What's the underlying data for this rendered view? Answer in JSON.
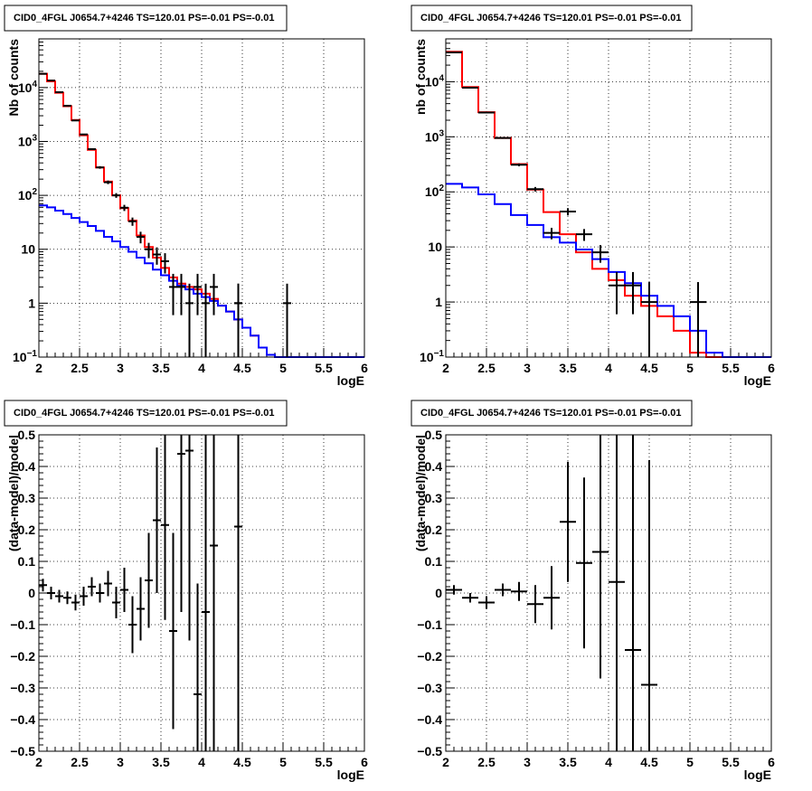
{
  "chart_data": [
    {
      "panel": "top-left",
      "type": "histogram",
      "title": "CID0_4FGL J0654.7+4246 TS=120.01 PS=-0.01 PS=-0.01",
      "xlabel": "logE",
      "ylabel": "Nb of counts",
      "xlim": [
        2,
        6
      ],
      "ylim": [
        0.1,
        80000
      ],
      "yscale": "log",
      "grid": true,
      "x_ticks": [
        "2",
        "2.5",
        "3",
        "3.5",
        "4",
        "4.5",
        "5",
        "5.5",
        "6"
      ],
      "y_ticks": [
        {
          "value": 0.1,
          "label": "10",
          "sup": "−1"
        },
        {
          "value": 1,
          "label": "1",
          "sup": ""
        },
        {
          "value": 10,
          "label": "10",
          "sup": ""
        },
        {
          "value": 100,
          "label": "10",
          "sup": "2"
        },
        {
          "value": 1000,
          "label": "10",
          "sup": "3"
        },
        {
          "value": 10000,
          "label": "10",
          "sup": "4"
        }
      ],
      "bin_edges_start": 2.0,
      "bin_width": 0.1,
      "series": [
        {
          "color": "#ff0000",
          "values": [
            18000,
            13000,
            8000,
            4500,
            2500,
            1300,
            700,
            330,
            180,
            100,
            58,
            34,
            18,
            11,
            7,
            4.5,
            3,
            2.3,
            2,
            1.8,
            1.5,
            1.2,
            0.9,
            0.7,
            0.5,
            0.35,
            0.25,
            0.15,
            0.11,
            0.1,
            0.1,
            0.1,
            0.1,
            0.1,
            0.1,
            0.1,
            0.1,
            0.1,
            0.1,
            0.1
          ]
        },
        {
          "color": "#0000ff",
          "values": [
            65,
            60,
            52,
            45,
            38,
            32,
            27,
            22,
            17,
            14,
            11,
            9,
            7,
            5.5,
            4.2,
            3.3,
            2.6,
            2.1,
            1.8,
            1.5,
            1.3,
            1.1,
            0.9,
            0.7,
            0.5,
            0.35,
            0.25,
            0.15,
            0.11,
            0.1,
            0.1,
            0.1,
            0.1,
            0.1,
            0.1,
            0.1,
            0.1,
            0.1,
            0.1,
            0.1
          ]
        }
      ],
      "points": [
        {
          "x": 2.05,
          "y": 18000
        },
        {
          "x": 2.15,
          "y": 13500
        },
        {
          "x": 2.25,
          "y": 8200
        },
        {
          "x": 2.35,
          "y": 4600
        },
        {
          "x": 2.45,
          "y": 2450
        },
        {
          "x": 2.55,
          "y": 1350
        },
        {
          "x": 2.65,
          "y": 720
        },
        {
          "x": 2.75,
          "y": 330
        },
        {
          "x": 2.85,
          "y": 175
        },
        {
          "x": 2.95,
          "y": 100
        },
        {
          "x": 3.05,
          "y": 59
        },
        {
          "x": 3.15,
          "y": 33
        },
        {
          "x": 3.25,
          "y": 17
        },
        {
          "x": 3.35,
          "y": 10
        },
        {
          "x": 3.45,
          "y": 8
        },
        {
          "x": 3.55,
          "y": 6
        },
        {
          "x": 3.65,
          "y": 2,
          "lo": 0.6,
          "hi": 3.5
        },
        {
          "x": 3.75,
          "y": 2,
          "lo": 0.6,
          "hi": 3.5
        },
        {
          "x": 3.85,
          "y": 1,
          "lo": 0.1,
          "hi": 2.3
        },
        {
          "x": 3.95,
          "y": 2,
          "lo": 0.6,
          "hi": 3.5
        },
        {
          "x": 4.05,
          "y": 1,
          "lo": 0.1,
          "hi": 2.3
        },
        {
          "x": 4.15,
          "y": 2,
          "lo": 0.6,
          "hi": 3.5
        },
        {
          "x": 4.45,
          "y": 1,
          "lo": 0.1,
          "hi": 2.3
        },
        {
          "x": 4.45,
          "y": 1,
          "lo": 0.1,
          "hi": 2.3
        },
        {
          "x": 5.05,
          "y": 1,
          "lo": 0.1,
          "hi": 2.3
        }
      ]
    },
    {
      "panel": "top-right",
      "type": "histogram",
      "title": "CID0_4FGL J0654.7+4246 TS=120.01 PS=-0.01 PS=-0.01",
      "xlabel": "logE",
      "ylabel": "nb of counts",
      "xlim": [
        2,
        6
      ],
      "ylim": [
        0.1,
        60000
      ],
      "yscale": "log",
      "grid": true,
      "x_ticks": [
        "2",
        "2.5",
        "3",
        "3.5",
        "4",
        "4.5",
        "5",
        "5.5",
        "6"
      ],
      "y_ticks": [
        {
          "value": 0.1,
          "label": "10",
          "sup": "−1"
        },
        {
          "value": 1,
          "label": "1",
          "sup": ""
        },
        {
          "value": 10,
          "label": "10",
          "sup": ""
        },
        {
          "value": 100,
          "label": "10",
          "sup": "2"
        },
        {
          "value": 1000,
          "label": "10",
          "sup": "3"
        },
        {
          "value": 10000,
          "label": "10",
          "sup": "4"
        }
      ],
      "bin_edges_start": 2.0,
      "bin_width": 0.2,
      "series": [
        {
          "color": "#ff0000",
          "values": [
            35000,
            8000,
            2800,
            950,
            320,
            110,
            43,
            17,
            8,
            4,
            2.5,
            1.3,
            0.85,
            0.55,
            0.3,
            0.12,
            0.1,
            0.1,
            0.1,
            0.1
          ]
        },
        {
          "color": "#0000ff",
          "values": [
            140,
            120,
            90,
            60,
            38,
            25,
            15,
            12,
            9,
            6,
            3.5,
            2.2,
            1.3,
            0.85,
            0.55,
            0.3,
            0.12,
            0.1,
            0.1,
            0.1
          ]
        }
      ],
      "points": [
        {
          "x": 2.1,
          "y": 34000
        },
        {
          "x": 2.3,
          "y": 7800
        },
        {
          "x": 2.5,
          "y": 2750
        },
        {
          "x": 2.7,
          "y": 950
        },
        {
          "x": 2.9,
          "y": 310
        },
        {
          "x": 3.1,
          "y": 112
        },
        {
          "x": 3.3,
          "y": 18
        },
        {
          "x": 3.5,
          "y": 44
        },
        {
          "x": 3.7,
          "y": 17
        },
        {
          "x": 3.9,
          "y": 8
        },
        {
          "x": 4.1,
          "y": 2,
          "lo": 0.6,
          "hi": 3.5
        },
        {
          "x": 4.3,
          "y": 2,
          "lo": 0.6,
          "hi": 3.5
        },
        {
          "x": 4.5,
          "y": 1,
          "lo": 0.1,
          "hi": 2.3
        },
        {
          "x": 5.1,
          "y": 1,
          "lo": 0.1,
          "hi": 2.3
        }
      ]
    },
    {
      "panel": "bottom-left",
      "type": "scatter",
      "title": "CID0_4FGL J0654.7+4246 TS=120.01 PS=-0.01 PS=-0.01",
      "xlabel": "logE",
      "ylabel": "(data-model)/model",
      "xlim": [
        2,
        6
      ],
      "ylim": [
        -0.5,
        0.5
      ],
      "grid": true,
      "x_ticks": [
        "2",
        "2.5",
        "3",
        "3.5",
        "4",
        "4.5",
        "5",
        "5.5",
        "6"
      ],
      "y_ticks": [
        "−0.5",
        "−0.4",
        "−0.3",
        "−0.2",
        "−0.1",
        "0",
        "0.1",
        "0.2",
        "0.3",
        "0.4",
        "0.5"
      ],
      "points": [
        {
          "x": 2.05,
          "y": 0.025,
          "err": 0.02
        },
        {
          "x": 2.15,
          "y": 0.0,
          "err": 0.02
        },
        {
          "x": 2.25,
          "y": -0.01,
          "err": 0.02
        },
        {
          "x": 2.35,
          "y": -0.015,
          "err": 0.02
        },
        {
          "x": 2.45,
          "y": -0.03,
          "err": 0.025
        },
        {
          "x": 2.55,
          "y": -0.01,
          "err": 0.03
        },
        {
          "x": 2.65,
          "y": 0.02,
          "err": 0.03
        },
        {
          "x": 2.75,
          "y": 0.0,
          "err": 0.03
        },
        {
          "x": 2.85,
          "y": 0.03,
          "err": 0.04
        },
        {
          "x": 2.95,
          "y": -0.03,
          "err": 0.05
        },
        {
          "x": 3.05,
          "y": 0.01,
          "err": 0.07
        },
        {
          "x": 3.15,
          "y": -0.1,
          "err": 0.09
        },
        {
          "x": 3.25,
          "y": -0.05,
          "err": 0.1
        },
        {
          "x": 3.35,
          "y": 0.04,
          "err": 0.15
        },
        {
          "x": 3.45,
          "y": 0.23,
          "err": 0.23
        },
        {
          "x": 3.55,
          "y": 0.215,
          "err": 0.3
        },
        {
          "x": 3.65,
          "y": -0.12,
          "err": 0.31
        },
        {
          "x": 3.75,
          "y": 0.44,
          "err": 0.5
        },
        {
          "x": 3.85,
          "y": 0.45,
          "err": 0.6
        },
        {
          "x": 3.95,
          "y": -0.32,
          "err": 0.35
        },
        {
          "x": 4.05,
          "y": -0.06,
          "err": 0.9
        },
        {
          "x": 4.15,
          "y": 0.15,
          "err": 0.9
        },
        {
          "x": 4.45,
          "y": 0.21,
          "err": 1.0
        }
      ]
    },
    {
      "panel": "bottom-right",
      "type": "scatter",
      "title": "CID0_4FGL J0654.7+4246 TS=120.01 PS=-0.01 PS=-0.01",
      "xlabel": "logE",
      "ylabel": "(data-model)/model",
      "xlim": [
        2,
        6
      ],
      "ylim": [
        -0.5,
        0.5
      ],
      "grid": true,
      "x_ticks": [
        "2",
        "2.5",
        "3",
        "3.5",
        "4",
        "4.5",
        "5",
        "5.5",
        "6"
      ],
      "y_ticks": [
        "−0.5",
        "−0.4",
        "−0.3",
        "−0.2",
        "−0.1",
        "0",
        "0.1",
        "0.2",
        "0.3",
        "0.4",
        "0.5"
      ],
      "points": [
        {
          "x": 2.1,
          "y": 0.01,
          "err": 0.015
        },
        {
          "x": 2.3,
          "y": -0.015,
          "err": 0.015
        },
        {
          "x": 2.5,
          "y": -0.03,
          "err": 0.02
        },
        {
          "x": 2.7,
          "y": 0.01,
          "err": 0.02
        },
        {
          "x": 2.9,
          "y": 0.005,
          "err": 0.03
        },
        {
          "x": 3.1,
          "y": -0.035,
          "err": 0.06
        },
        {
          "x": 3.3,
          "y": -0.015,
          "err": 0.1
        },
        {
          "x": 3.5,
          "y": 0.225,
          "err": 0.19
        },
        {
          "x": 3.7,
          "y": 0.095,
          "err": 0.27
        },
        {
          "x": 3.9,
          "y": 0.13,
          "err": 0.4
        },
        {
          "x": 4.1,
          "y": 0.035,
          "err": 0.6
        },
        {
          "x": 4.3,
          "y": -0.18,
          "err": 0.7
        },
        {
          "x": 4.5,
          "y": -0.29,
          "err": 0.71
        }
      ]
    }
  ]
}
